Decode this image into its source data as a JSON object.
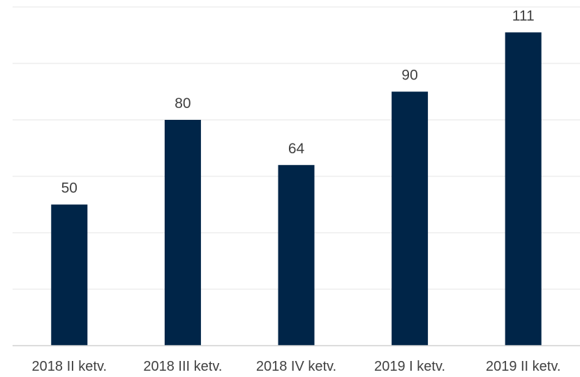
{
  "chart_data": {
    "type": "bar",
    "categories": [
      "2018 II ketv.",
      "2018 III ketv.",
      "2018 IV ketv.",
      "2019 I ketv.",
      "2019 II ketv."
    ],
    "series": [
      {
        "values": [
          50,
          80,
          64,
          90,
          111
        ],
        "color": "#002548"
      }
    ],
    "data_labels": [
      "50",
      "80",
      "64",
      "90",
      "111"
    ],
    "title": "",
    "xlabel": "",
    "ylabel": "",
    "ylim": [
      0,
      120
    ],
    "grid": true,
    "grid_color": "#e6e6e6",
    "legend": "none",
    "y_tick_labels_visible": false
  }
}
